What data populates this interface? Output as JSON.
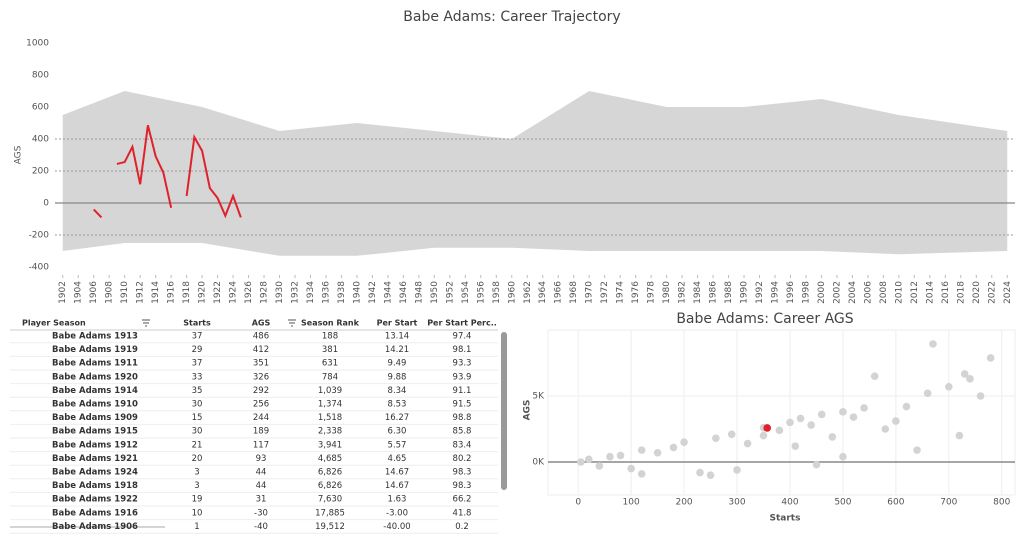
{
  "chart_data": [
    {
      "type": "line",
      "title": "Babe Adams: Career Trajectory",
      "y_label": "AGS",
      "xlim": [
        1901,
        2025
      ],
      "ylim": [
        -450,
        1050
      ],
      "xticks": [
        1902,
        1904,
        1906,
        1908,
        1910,
        1912,
        1914,
        1916,
        1918,
        1920,
        1922,
        1924,
        1926,
        1928,
        1930,
        1932,
        1934,
        1936,
        1938,
        1940,
        1942,
        1944,
        1946,
        1948,
        1950,
        1952,
        1954,
        1956,
        1958,
        1960,
        1962,
        1964,
        1966,
        1968,
        1970,
        1972,
        1974,
        1976,
        1978,
        1980,
        1982,
        1984,
        1986,
        1988,
        1990,
        1992,
        1994,
        1996,
        1998,
        2000,
        2002,
        2004,
        2006,
        2008,
        2010,
        2012,
        2014,
        2016,
        2018,
        2020,
        2022,
        2024
      ],
      "yticks": [
        -400,
        -200,
        0,
        200,
        400,
        600,
        800,
        1000
      ],
      "reference_lines": [
        -200,
        200,
        400
      ],
      "band": {
        "color": "#d6d6d6",
        "x": [
          1902,
          1910,
          1920,
          1930,
          1940,
          1950,
          1960,
          1970,
          1980,
          1990,
          2000,
          2010,
          2024
        ],
        "low": [
          -300,
          -250,
          -250,
          -330,
          -330,
          -280,
          -280,
          -300,
          -300,
          -300,
          -300,
          -320,
          -300
        ],
        "high": [
          550,
          700,
          600,
          450,
          500,
          450,
          400,
          700,
          600,
          600,
          650,
          550,
          450
        ]
      },
      "series": [
        {
          "color": "#e0212b",
          "x": [
            1906,
            1907,
            1908,
            1909,
            1910,
            1911,
            1912,
            1913,
            1914,
            1915,
            1916,
            1917,
            1918,
            1919,
            1920,
            1921,
            1922,
            1923,
            1924,
            1925
          ],
          "values": [
            -40,
            -90,
            null,
            244,
            256,
            351,
            117,
            486,
            292,
            189,
            -30,
            null,
            44,
            412,
            326,
            93,
            31,
            -80,
            44,
            -90
          ]
        }
      ]
    },
    {
      "type": "scatter",
      "title": "Babe Adams: Career AGS",
      "x_label": "Starts",
      "y_label": "AGS",
      "xlim": [
        -57,
        825
      ],
      "ylim": [
        -2500,
        10000
      ],
      "xticks": [
        0,
        100,
        200,
        300,
        400,
        500,
        600,
        700,
        800
      ],
      "yticks": [
        {
          "value": 0,
          "label": "0K"
        },
        {
          "value": 5000,
          "label": "5K"
        }
      ],
      "series": [
        {
          "color": "#d3d3d3",
          "x": [
            5,
            20,
            40,
            60,
            80,
            100,
            120,
            150,
            180,
            200,
            230,
            260,
            290,
            320,
            350,
            380,
            400,
            420,
            440,
            460,
            480,
            500,
            520,
            540,
            560,
            580,
            600,
            620,
            640,
            660,
            670,
            700,
            720,
            730,
            740,
            760,
            779,
            120,
            250,
            300,
            450,
            500,
            350,
            410
          ],
          "y": [
            0,
            200,
            -300,
            400,
            500,
            -500,
            900,
            700,
            1100,
            1500,
            -800,
            1800,
            2100,
            1400,
            2600,
            2400,
            3000,
            3300,
            2800,
            3600,
            1900,
            3800,
            3400,
            4100,
            6500,
            2500,
            3100,
            4200,
            900,
            5200,
            8940,
            5700,
            2000,
            6670,
            6300,
            5000,
            7880,
            -900,
            -1000,
            -600,
            -200,
            400,
            2000,
            1200
          ]
        },
        {
          "color": "#e0212b",
          "x": [
            357
          ],
          "y": [
            2580
          ]
        }
      ]
    }
  ],
  "table": {
    "columns": [
      "Player Season",
      "Starts",
      "AGS",
      "Season Rank",
      "Per Start",
      "Per Start Perc.."
    ],
    "rows": [
      [
        "Babe Adams 1913",
        "37",
        "486",
        "188",
        "13.14",
        "97.4"
      ],
      [
        "Babe Adams 1919",
        "29",
        "412",
        "381",
        "14.21",
        "98.1"
      ],
      [
        "Babe Adams 1911",
        "37",
        "351",
        "631",
        "9.49",
        "93.3"
      ],
      [
        "Babe Adams 1920",
        "33",
        "326",
        "784",
        "9.88",
        "93.9"
      ],
      [
        "Babe Adams 1914",
        "35",
        "292",
        "1,039",
        "8.34",
        "91.1"
      ],
      [
        "Babe Adams 1910",
        "30",
        "256",
        "1,374",
        "8.53",
        "91.5"
      ],
      [
        "Babe Adams 1909",
        "15",
        "244",
        "1,518",
        "16.27",
        "98.8"
      ],
      [
        "Babe Adams 1915",
        "30",
        "189",
        "2,338",
        "6.30",
        "85.8"
      ],
      [
        "Babe Adams 1912",
        "21",
        "117",
        "3,941",
        "5.57",
        "83.4"
      ],
      [
        "Babe Adams 1921",
        "20",
        "93",
        "4,685",
        "4.65",
        "80.2"
      ],
      [
        "Babe Adams 1924",
        "3",
        "44",
        "6,826",
        "14.67",
        "98.3"
      ],
      [
        "Babe Adams 1918",
        "3",
        "44",
        "6,826",
        "14.67",
        "98.3"
      ],
      [
        "Babe Adams 1922",
        "19",
        "31",
        "7,630",
        "1.63",
        "66.2"
      ],
      [
        "Babe Adams 1916",
        "10",
        "-30",
        "17,885",
        "-3.00",
        "41.8"
      ],
      [
        "Babe Adams 1906",
        "1",
        "-40",
        "19,512",
        "-40.00",
        "0.2"
      ]
    ]
  }
}
